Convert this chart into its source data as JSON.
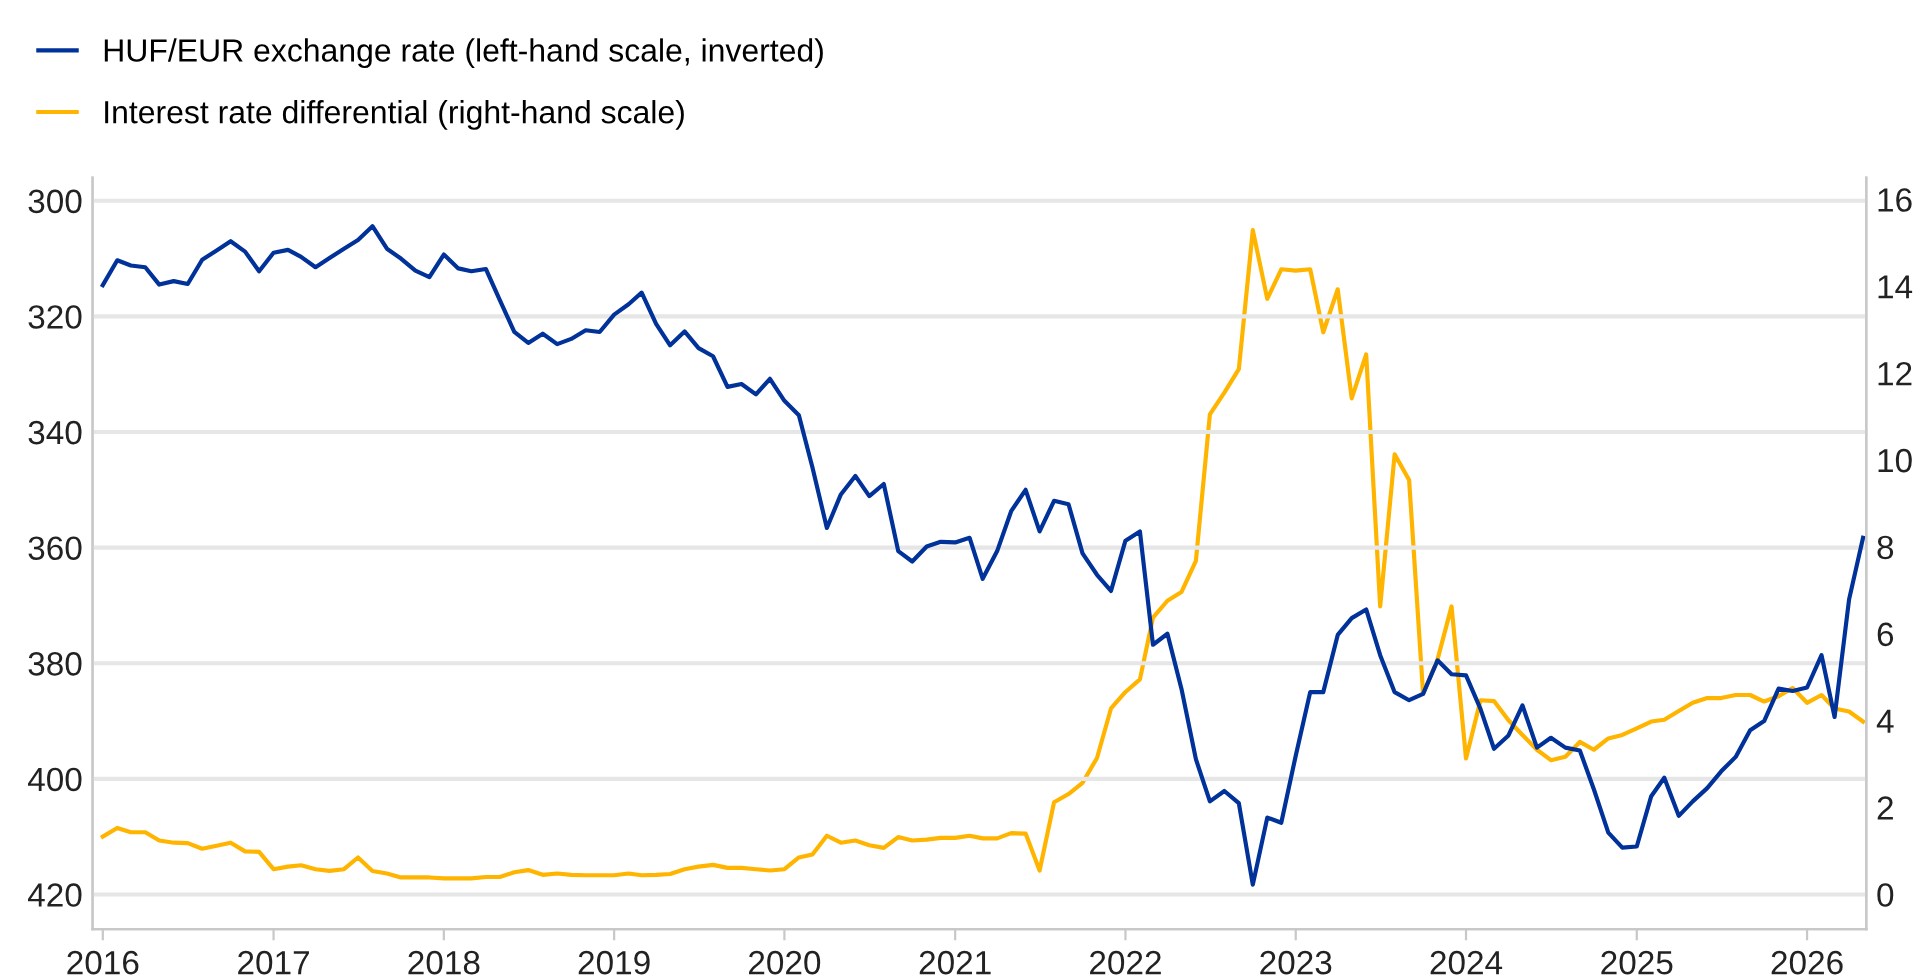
{
  "chart_data": {
    "type": "line",
    "x": [
      "2016-01",
      "2016-02",
      "2016-03",
      "2016-04",
      "2016-05",
      "2016-06",
      "2016-07",
      "2016-08",
      "2016-09",
      "2016-10",
      "2016-11",
      "2016-12",
      "2017-01",
      "2017-02",
      "2017-03",
      "2017-04",
      "2017-05",
      "2017-06",
      "2017-07",
      "2017-08",
      "2017-09",
      "2017-10",
      "2017-11",
      "2017-12",
      "2018-01",
      "2018-02",
      "2018-03",
      "2018-04",
      "2018-05",
      "2018-06",
      "2018-07",
      "2018-08",
      "2018-09",
      "2018-10",
      "2018-11",
      "2018-12",
      "2019-01",
      "2019-02",
      "2019-03",
      "2019-04",
      "2019-05",
      "2019-06",
      "2019-07",
      "2019-08",
      "2019-09",
      "2019-10",
      "2019-11",
      "2019-12",
      "2020-01",
      "2020-02",
      "2020-03",
      "2020-04",
      "2020-05",
      "2020-06",
      "2020-07",
      "2020-08",
      "2020-09",
      "2020-10",
      "2020-11",
      "2020-12",
      "2021-01",
      "2021-02",
      "2021-03",
      "2021-04",
      "2021-05",
      "2021-06",
      "2021-07",
      "2021-08",
      "2021-09",
      "2021-10",
      "2021-11",
      "2021-12",
      "2022-01",
      "2022-02",
      "2022-03",
      "2022-04",
      "2022-05",
      "2022-06",
      "2022-07",
      "2022-08",
      "2022-09",
      "2022-10",
      "2022-11",
      "2022-12",
      "2023-01",
      "2023-02",
      "2023-03",
      "2023-04",
      "2023-05",
      "2023-06",
      "2023-07",
      "2023-08",
      "2023-09",
      "2023-10",
      "2023-11",
      "2023-12",
      "2024-01",
      "2024-02",
      "2024-03",
      "2024-04",
      "2024-05",
      "2024-06",
      "2024-07",
      "2024-08",
      "2024-09",
      "2024-10",
      "2024-11",
      "2024-12",
      "2025-01",
      "2025-02",
      "2025-03",
      "2025-04",
      "2025-05",
      "2025-06",
      "2025-07",
      "2025-08",
      "2025-09",
      "2025-10",
      "2025-11",
      "2025-12",
      "2026-01",
      "2026-02",
      "2026-03",
      "2026-04",
      "2026-05"
    ],
    "series": [
      {
        "name": "HUF/EUR exchange rate (left-hand scale, inverted)",
        "color": "#003299",
        "axis": "y",
        "values": [
          314.6,
          310.3,
          311.2,
          311.5,
          314.5,
          313.9,
          314.4,
          310.2,
          308.6,
          307.0,
          308.8,
          312.2,
          309.0,
          308.5,
          309.7,
          311.5,
          309.9,
          308.3,
          306.8,
          304.4,
          308.3,
          310.0,
          312.1,
          313.2,
          309.3,
          311.7,
          312.2,
          311.8,
          317.2,
          322.7,
          324.6,
          323.0,
          324.8,
          323.9,
          322.4,
          322.7,
          319.7,
          317.9,
          315.9,
          321.3,
          325.0,
          322.6,
          325.5,
          326.9,
          332.2,
          331.7,
          333.5,
          330.8,
          334.6,
          337.1,
          346.1,
          356.6,
          350.8,
          347.6,
          351.1,
          349.0,
          360.6,
          362.4,
          359.8,
          359.0,
          359.1,
          358.3,
          365.4,
          360.6,
          353.7,
          350.0,
          357.2,
          351.9,
          352.5,
          361.0,
          364.7,
          367.5,
          358.8,
          357.2,
          376.8,
          374.9,
          384.4,
          396.6,
          403.9,
          402.1,
          404.2,
          418.3,
          406.7,
          407.6,
          396.0,
          385.0,
          385.0,
          375.1,
          372.2,
          370.7,
          378.6,
          385.0,
          386.4,
          385.3,
          379.5,
          381.9,
          382.1,
          387.9,
          394.8,
          392.5,
          387.3,
          394.6,
          392.9,
          394.6,
          395.1,
          401.8,
          409.3,
          411.9,
          411.7,
          403.0,
          399.8,
          406.4,
          403.9,
          401.6,
          398.7,
          396.2,
          391.6,
          390.0,
          384.4,
          384.8,
          384.2,
          378.6,
          389.3,
          369.0,
          358.3
        ]
      },
      {
        "name": "Interest rate differential (right-hand scale)",
        "color": "#ffb400",
        "axis": "y2",
        "values": [
          1.33,
          1.53,
          1.43,
          1.43,
          1.24,
          1.19,
          1.18,
          1.05,
          1.12,
          1.19,
          0.99,
          0.98,
          0.58,
          0.64,
          0.67,
          0.58,
          0.54,
          0.58,
          0.85,
          0.54,
          0.48,
          0.39,
          0.39,
          0.39,
          0.37,
          0.37,
          0.37,
          0.4,
          0.4,
          0.51,
          0.56,
          0.45,
          0.48,
          0.45,
          0.44,
          0.44,
          0.44,
          0.48,
          0.44,
          0.45,
          0.47,
          0.58,
          0.64,
          0.68,
          0.61,
          0.61,
          0.58,
          0.55,
          0.58,
          0.85,
          0.92,
          1.35,
          1.19,
          1.24,
          1.13,
          1.07,
          1.32,
          1.24,
          1.26,
          1.3,
          1.3,
          1.35,
          1.29,
          1.29,
          1.41,
          1.4,
          0.55,
          2.12,
          2.31,
          2.57,
          3.14,
          4.28,
          4.66,
          4.95,
          6.37,
          6.76,
          6.96,
          7.68,
          11.05,
          11.55,
          12.09,
          15.29,
          13.71,
          14.39,
          14.36,
          14.39,
          12.94,
          13.93,
          11.42,
          12.43,
          6.63,
          10.13,
          9.54,
          4.62,
          5.41,
          6.63,
          3.13,
          4.47,
          4.45,
          4.01,
          3.67,
          3.33,
          3.09,
          3.17,
          3.51,
          3.33,
          3.59,
          3.67,
          3.82,
          3.98,
          4.02,
          4.22,
          4.41,
          4.52,
          4.52,
          4.59,
          4.59,
          4.44,
          4.56,
          4.75,
          4.41,
          4.59,
          4.28,
          4.21,
          3.98
        ]
      }
    ],
    "xlim": [
      "2015-12-10",
      "2026-05-08"
    ],
    "xticks": [
      {
        "value": "2016-01-01",
        "label": "2016"
      },
      {
        "value": "2017-01-01",
        "label": "2017"
      },
      {
        "value": "2018-01-01",
        "label": "2018"
      },
      {
        "value": "2019-01-01",
        "label": "2019"
      },
      {
        "value": "2020-01-01",
        "label": "2020"
      },
      {
        "value": "2021-01-01",
        "label": "2021"
      },
      {
        "value": "2022-01-01",
        "label": "2022"
      },
      {
        "value": "2023-01-01",
        "label": "2023"
      },
      {
        "value": "2024-01-01",
        "label": "2024"
      },
      {
        "value": "2025-01-01",
        "label": "2025"
      },
      {
        "value": "2026-01-01",
        "label": "2026"
      }
    ],
    "ylim": [
      426,
      296
    ],
    "yticks": [
      300,
      320,
      340,
      360,
      380,
      400,
      420
    ],
    "y2lim": [
      -0.8,
      16.5
    ],
    "y2ticks": [
      0,
      2,
      4,
      6,
      8,
      10,
      12,
      14,
      16
    ],
    "grid": "y",
    "legend": "top left",
    "marker": "none",
    "line_style": "solid"
  }
}
